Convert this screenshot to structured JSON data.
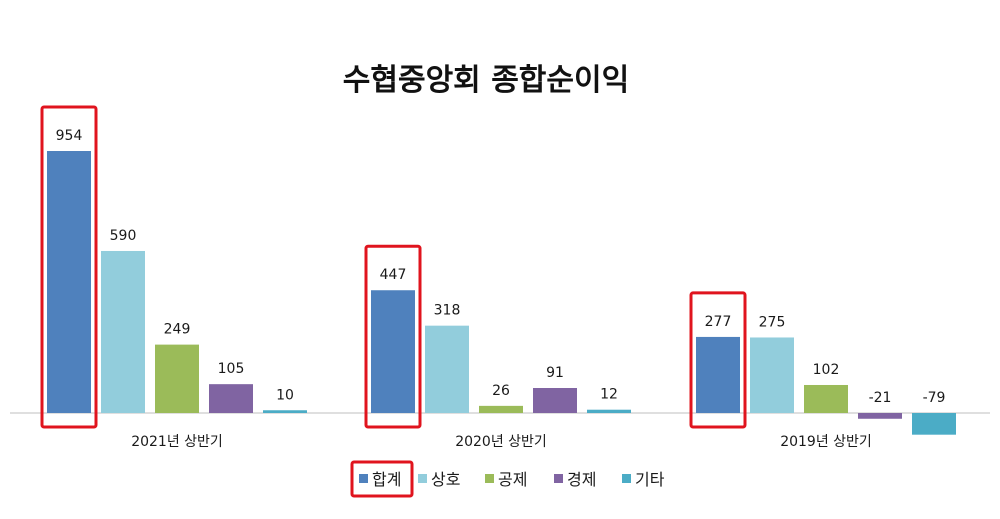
{
  "chart_data": {
    "type": "bar",
    "title": "수협중앙회 종합순이익",
    "categories": [
      "2021년 상반기",
      "2020년 상반기",
      "2019년 상반기"
    ],
    "series": [
      {
        "name": "합계",
        "color": "#4f81bd",
        "values": [
          954,
          447,
          277
        ]
      },
      {
        "name": "상호",
        "color": "#92cddc",
        "values": [
          590,
          318,
          275
        ]
      },
      {
        "name": "공제",
        "color": "#9bbb59",
        "values": [
          249,
          26,
          102
        ]
      },
      {
        "name": "경제",
        "color": "#8064a2",
        "values": [
          105,
          91,
          -21
        ]
      },
      {
        "name": "기타",
        "color": "#4bacc6",
        "values": [
          10,
          12,
          -79
        ]
      }
    ],
    "highlight_series": "합계",
    "highlight_color": "#e0141e",
    "legend_position": "bottom",
    "grid": false,
    "axis_color": "#bfbfbf"
  }
}
